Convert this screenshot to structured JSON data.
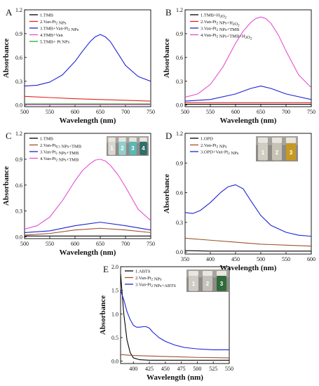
{
  "chart_data": [
    {
      "type": "line",
      "panel_label": "A",
      "xlabel": "Wavelength (nm)",
      "ylabel": "Absorbance",
      "xlim": [
        500,
        750
      ],
      "ylim": [
        -0.02,
        1.2
      ],
      "xticks": [
        "500",
        "550",
        "600",
        "650",
        "700",
        "750"
      ],
      "yticks": [
        "0.0",
        "0.3",
        "0.6",
        "0.9",
        "1.2"
      ],
      "legend_position": "top-left",
      "series": [
        {
          "name": "1.TMB",
          "color": "#000000",
          "x": [
            500,
            550,
            600,
            650,
            700,
            750
          ],
          "y": [
            0.01,
            0.01,
            0.01,
            0.01,
            0.01,
            0.01
          ]
        },
        {
          "name": "2.Van-Pt₂ NPs",
          "color": "#e8201e",
          "x": [
            500,
            550,
            600,
            650,
            700,
            750
          ],
          "y": [
            0.11,
            0.095,
            0.08,
            0.07,
            0.06,
            0.05
          ]
        },
        {
          "name": "3.TMB+Van-Pt₂ NPs",
          "color": "#1d23d6",
          "x": [
            500,
            525,
            550,
            575,
            600,
            615,
            630,
            640,
            650,
            660,
            670,
            685,
            700,
            725,
            750
          ],
          "y": [
            0.24,
            0.25,
            0.29,
            0.38,
            0.55,
            0.68,
            0.8,
            0.86,
            0.89,
            0.86,
            0.8,
            0.65,
            0.5,
            0.36,
            0.3
          ]
        },
        {
          "name": "4.TMB+Van",
          "color": "#e64fd4",
          "x": [
            500,
            550,
            600,
            650,
            700,
            750
          ],
          "y": [
            0.005,
            0.005,
            0.005,
            0.005,
            0.005,
            0.005
          ]
        },
        {
          "name": "5.TMB+ Pt NPs",
          "color": "#2da832",
          "x": [
            500,
            550,
            600,
            650,
            700,
            750
          ],
          "y": [
            0.015,
            0.015,
            0.015,
            0.015,
            0.015,
            0.015
          ]
        }
      ]
    },
    {
      "type": "line",
      "panel_label": "B",
      "xlabel": "Wavelength (nm)",
      "ylabel": "Absorbance",
      "xlim": [
        500,
        750
      ],
      "ylim": [
        -0.02,
        1.2
      ],
      "xticks": [
        "500",
        "550",
        "600",
        "650",
        "700",
        "750"
      ],
      "yticks": [
        "0.0",
        "0.3",
        "0.6",
        "0.9",
        "1.2"
      ],
      "legend_position": "top-left",
      "series": [
        {
          "name": "1.TMB+H₂O₂",
          "color": "#000000",
          "x": [
            500,
            550,
            600,
            650,
            700,
            750
          ],
          "y": [
            0.01,
            0.01,
            0.01,
            0.01,
            0.01,
            0.01
          ]
        },
        {
          "name": "2.Van-Pt₂ NPs+H₂O₂",
          "color": "#e8201e",
          "x": [
            500,
            550,
            600,
            650,
            700,
            750
          ],
          "y": [
            0.03,
            0.03,
            0.03,
            0.03,
            0.03,
            0.03
          ]
        },
        {
          "name": "3.Van-Pt₂ NPs+TMB",
          "color": "#1d23d6",
          "x": [
            500,
            550,
            600,
            630,
            650,
            670,
            700,
            750
          ],
          "y": [
            0.05,
            0.07,
            0.14,
            0.21,
            0.24,
            0.21,
            0.14,
            0.07
          ]
        },
        {
          "name": "4.Van-Pt₂ NPs+TMB+H₂O₂",
          "color": "#e64fd4",
          "x": [
            500,
            525,
            550,
            575,
            600,
            615,
            630,
            640,
            650,
            660,
            670,
            685,
            700,
            725,
            750
          ],
          "y": [
            0.1,
            0.14,
            0.26,
            0.48,
            0.78,
            0.93,
            1.04,
            1.09,
            1.11,
            1.09,
            1.03,
            0.88,
            0.68,
            0.38,
            0.22
          ]
        }
      ]
    },
    {
      "type": "line",
      "panel_label": "C",
      "xlabel": "Wavelength (nm)",
      "ylabel": "Absorbance",
      "xlim": [
        500,
        750
      ],
      "ylim": [
        -0.02,
        1.2
      ],
      "xticks": [
        "500",
        "550",
        "600",
        "650",
        "700",
        "750"
      ],
      "yticks": [
        "0.0",
        "0.3",
        "0.6",
        "0.9",
        "1.2"
      ],
      "legend_position": "top-left",
      "vials": [
        "1",
        "2",
        "3",
        "4"
      ],
      "series": [
        {
          "name": "1.TMB",
          "color": "#000000",
          "x": [
            500,
            550,
            600,
            650,
            700,
            750
          ],
          "y": [
            0.01,
            0.01,
            0.01,
            0.01,
            0.01,
            0.01
          ]
        },
        {
          "name": "2.Van-Pt₀.₅ NPs+TMB",
          "color": "#a0522d",
          "x": [
            500,
            550,
            600,
            650,
            700,
            750
          ],
          "y": [
            0.02,
            0.04,
            0.08,
            0.1,
            0.08,
            0.05
          ]
        },
        {
          "name": "3.Van-Pt₁ NPs+TMB",
          "color": "#1d23d6",
          "x": [
            500,
            550,
            600,
            650,
            700,
            750
          ],
          "y": [
            0.05,
            0.07,
            0.13,
            0.17,
            0.13,
            0.08
          ]
        },
        {
          "name": "4.Van-Pt₂ NPs+TMB",
          "color": "#e64fd4",
          "x": [
            500,
            525,
            550,
            575,
            600,
            615,
            630,
            640,
            650,
            660,
            670,
            685,
            700,
            725,
            750
          ],
          "y": [
            0.09,
            0.13,
            0.23,
            0.42,
            0.65,
            0.77,
            0.85,
            0.89,
            0.9,
            0.88,
            0.83,
            0.72,
            0.58,
            0.32,
            0.19
          ]
        }
      ]
    },
    {
      "type": "line",
      "panel_label": "D",
      "xlabel": "Wavelength (nm)",
      "ylabel": "Absorbance",
      "xlim": [
        350,
        600
      ],
      "ylim": [
        -0.02,
        1.2
      ],
      "xticks": [
        "350",
        "400",
        "450",
        "500",
        "550",
        "600"
      ],
      "yticks": [
        "0.0",
        "0.3",
        "0.6",
        "0.9",
        "1.2"
      ],
      "legend_position": "top-left",
      "vials": [
        "1",
        "2",
        "3"
      ],
      "series": [
        {
          "name": "1.OPD",
          "color": "#000000",
          "x": [
            350,
            400,
            450,
            500,
            550,
            600
          ],
          "y": [
            0.015,
            0.01,
            0.01,
            0.01,
            0.01,
            0.01
          ]
        },
        {
          "name": "2.Van-Pt₂ NPs",
          "color": "#a0522d",
          "x": [
            350,
            400,
            450,
            500,
            550,
            600
          ],
          "y": [
            0.14,
            0.12,
            0.1,
            0.08,
            0.07,
            0.06
          ]
        },
        {
          "name": "3.OPD+Van-Pt₂ NPs",
          "color": "#1d23d6",
          "x": [
            350,
            365,
            380,
            400,
            420,
            435,
            450,
            465,
            480,
            500,
            520,
            550,
            575,
            600
          ],
          "y": [
            0.4,
            0.39,
            0.42,
            0.5,
            0.6,
            0.66,
            0.68,
            0.64,
            0.52,
            0.37,
            0.27,
            0.2,
            0.17,
            0.16
          ]
        }
      ]
    },
    {
      "type": "line",
      "panel_label": "E",
      "xlabel": "Wavelength (nm)",
      "ylabel": "Absorbance",
      "xlim": [
        380,
        550
      ],
      "ylim": [
        -0.05,
        2.0
      ],
      "xticks": [
        "400",
        "425",
        "450",
        "475",
        "500",
        "525",
        "550"
      ],
      "yticks": [
        "0.0",
        "0.5",
        "1.0",
        "1.5",
        "2.0"
      ],
      "legend_position": "top-left",
      "vials": [
        "1",
        "2",
        "3"
      ],
      "series": [
        {
          "name": "1.ABTS",
          "color": "#000000",
          "x": [
            380,
            385,
            390,
            395,
            400,
            410,
            425,
            450,
            500,
            550
          ],
          "y": [
            1.85,
            1.0,
            0.45,
            0.18,
            0.07,
            0.03,
            0.02,
            0.02,
            0.02,
            0.02
          ]
        },
        {
          "name": "2.Van-Pt₂ NPs",
          "color": "#a0522d",
          "x": [
            380,
            400,
            450,
            500,
            550
          ],
          "y": [
            0.14,
            0.12,
            0.1,
            0.08,
            0.07
          ]
        },
        {
          "name": "3.Van-Pt₂ NPs+ABTS",
          "color": "#1d23d6",
          "x": [
            380,
            385,
            390,
            395,
            400,
            405,
            410,
            415,
            420,
            425,
            430,
            440,
            450,
            465,
            480,
            500,
            525,
            550
          ],
          "y": [
            1.5,
            1.3,
            1.05,
            0.88,
            0.76,
            0.72,
            0.72,
            0.73,
            0.73,
            0.7,
            0.62,
            0.5,
            0.42,
            0.34,
            0.29,
            0.26,
            0.24,
            0.24
          ]
        }
      ]
    }
  ]
}
